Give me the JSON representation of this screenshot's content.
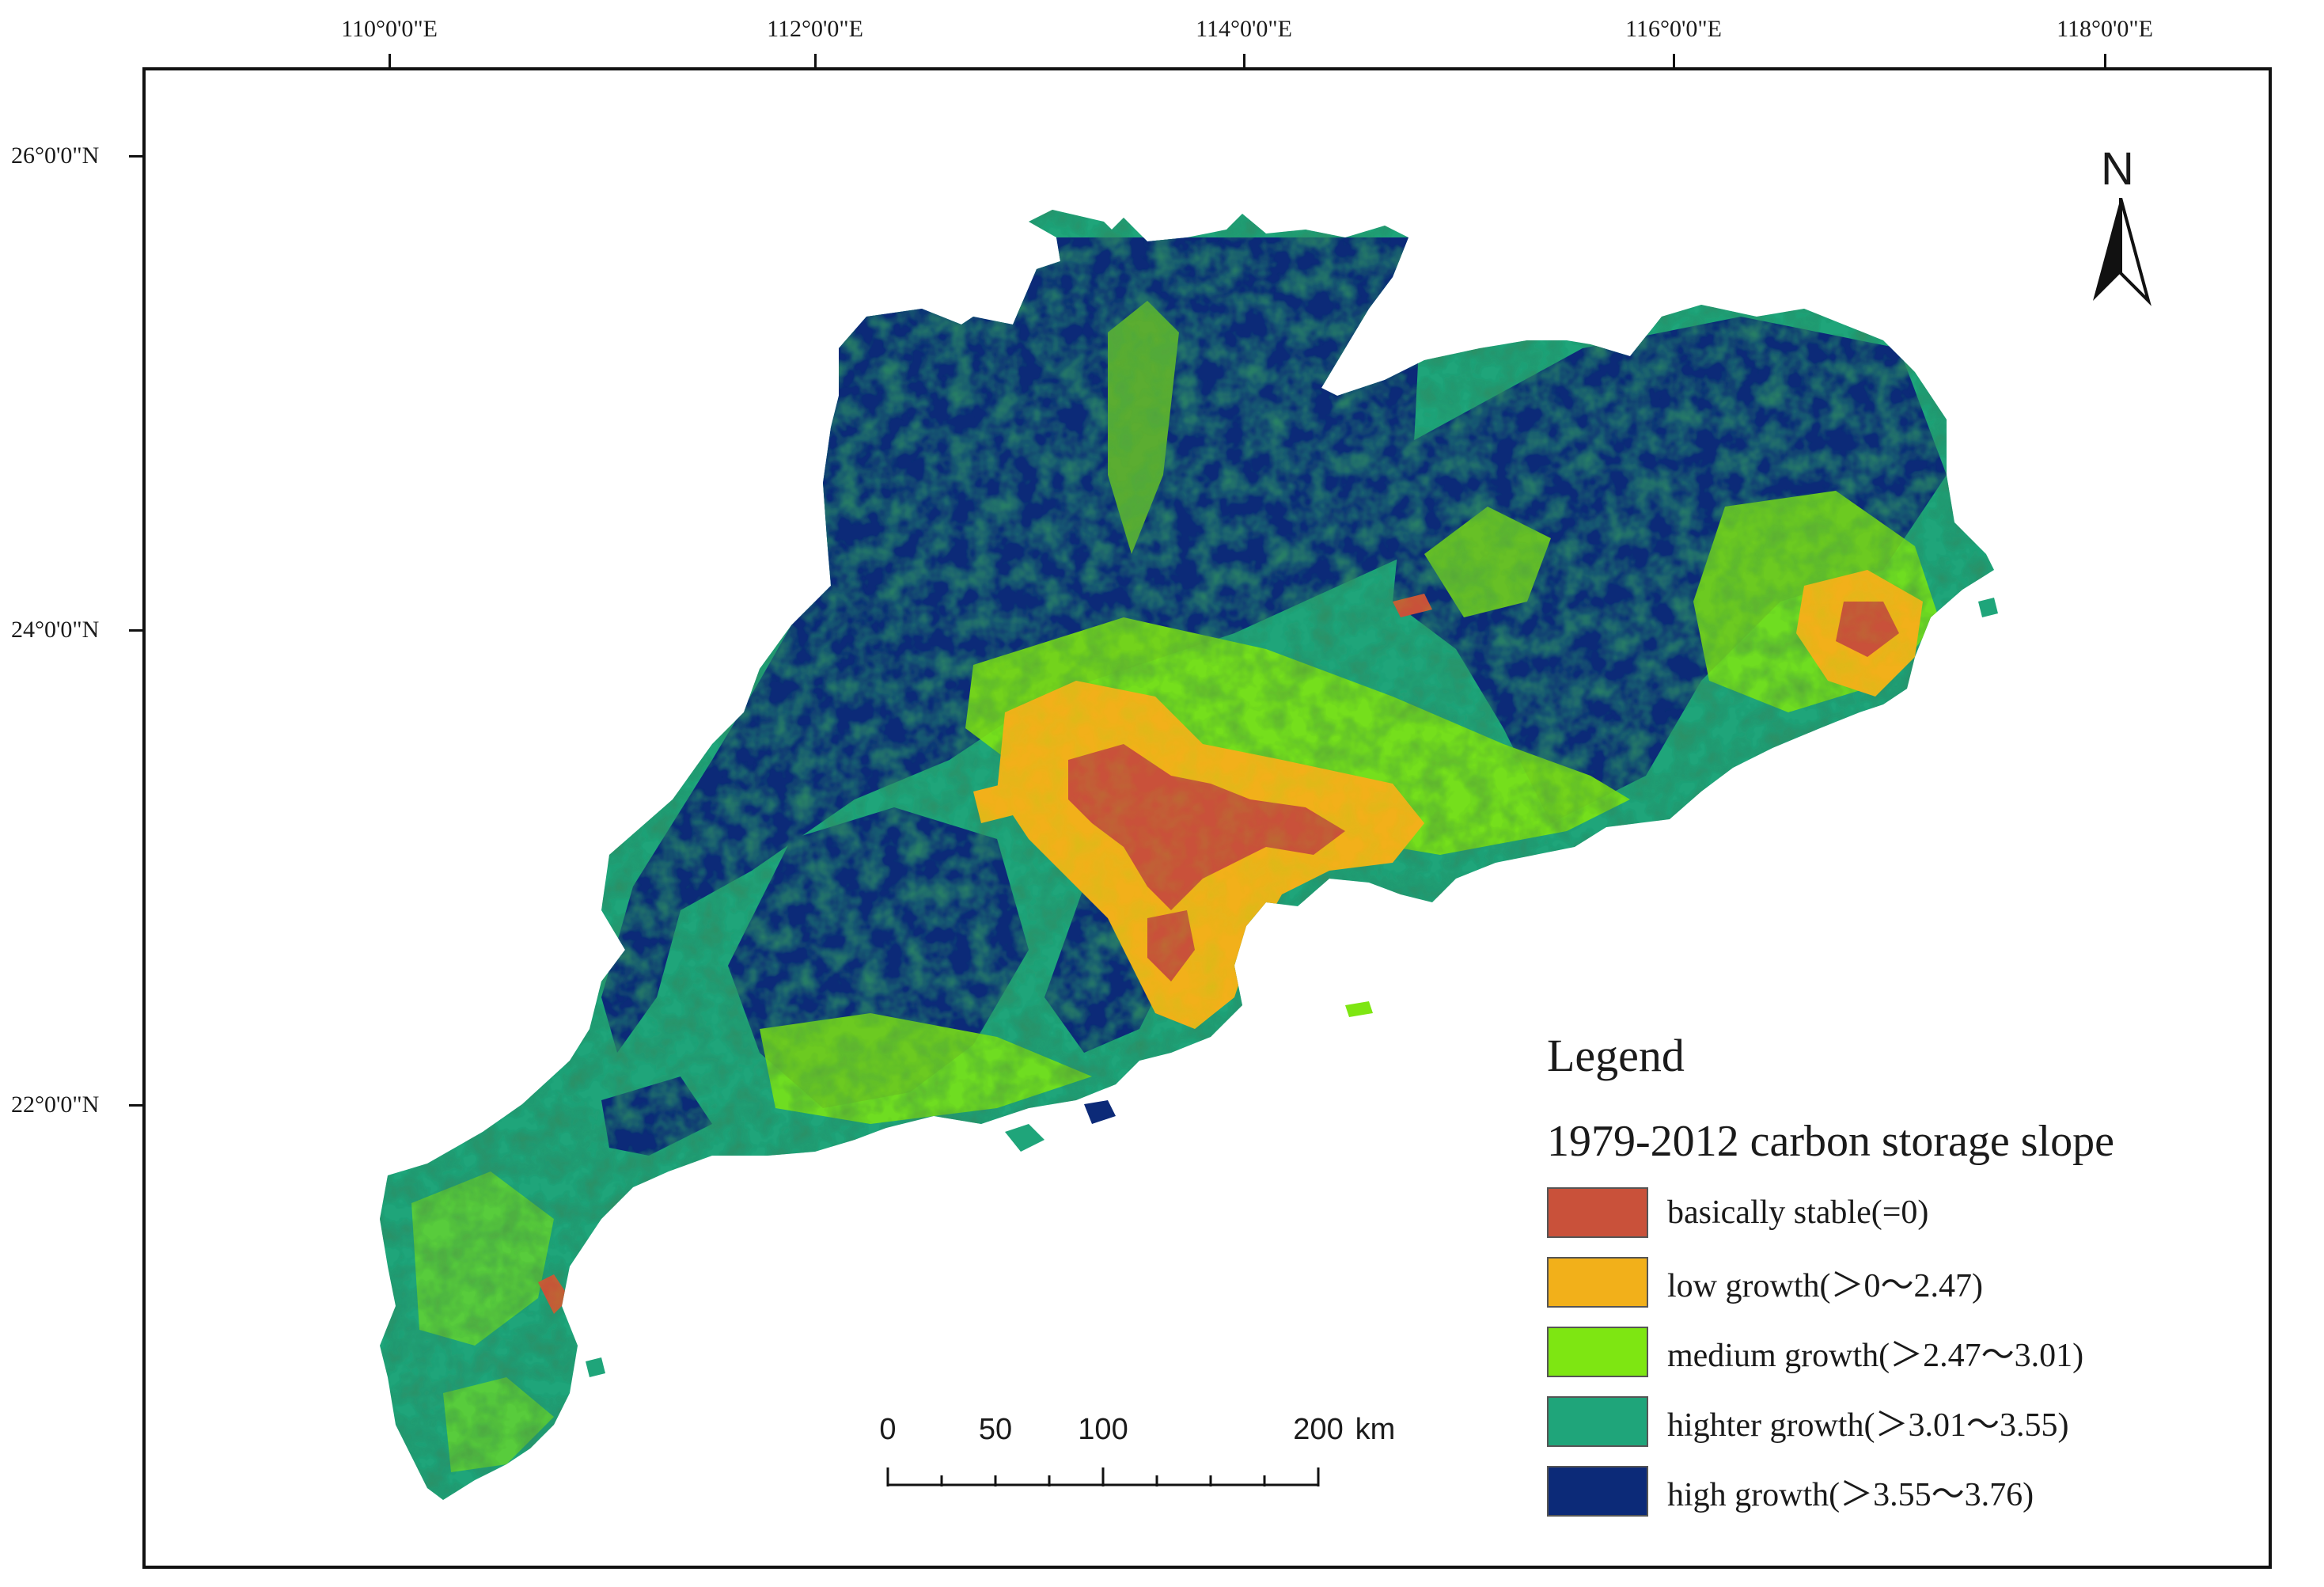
{
  "graticule": {
    "longitudes": [
      "110°0'0\"E",
      "112°0'0\"E",
      "114°0'0\"E",
      "116°0'0\"E",
      "118°0'0\"E"
    ],
    "latitudes": [
      "26°0'0\"N",
      "24°0'0\"N",
      "22°0'0\"N"
    ]
  },
  "north_arrow": {
    "label": "N"
  },
  "legend": {
    "title": "Legend",
    "subtitle": "1979-2012 carbon storage slope",
    "items": [
      {
        "label": "basically stable(=0)",
        "color": "#c9513a"
      },
      {
        "label": "low growth(＞0～2.47)",
        "color": "#f2b01a"
      },
      {
        "label": "medium growth(＞2.47～3.01)",
        "color": "#7ee612"
      },
      {
        "label": "highter growth(＞3.01～3.55)",
        "color": "#1fa57a"
      },
      {
        "label": "high growth(＞3.55～3.76)",
        "color": "#0c2a78"
      }
    ]
  },
  "scale_bar": {
    "labels": [
      "0",
      "50",
      "100",
      "200"
    ],
    "unit": "km"
  }
}
